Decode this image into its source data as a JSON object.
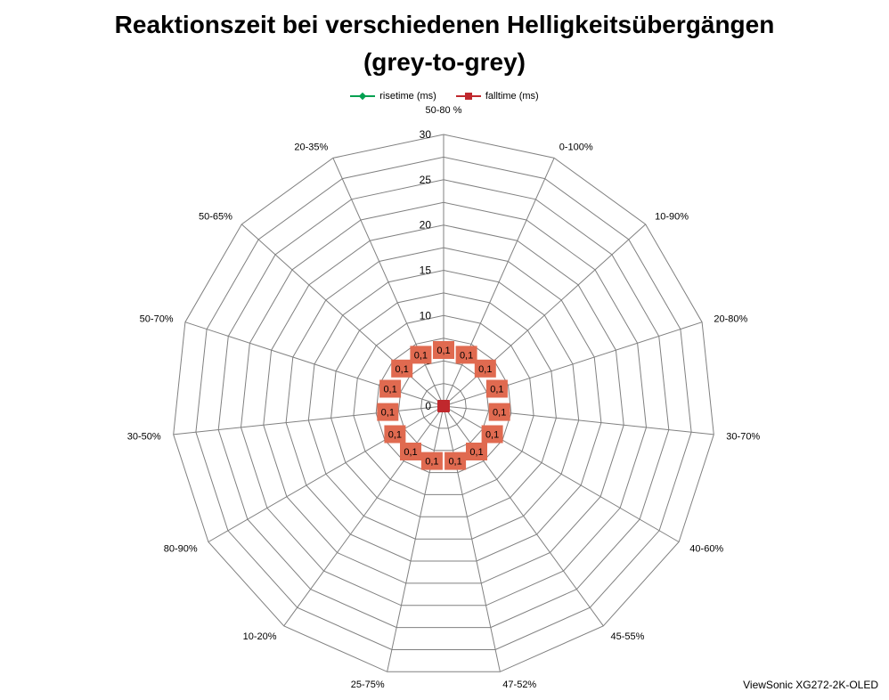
{
  "title_line1": "Reaktionszeit bei verschiedenen Helligkeitsübergängen",
  "title_line2": "(grey-to-grey)",
  "watermark": "ViewSonic XG272-2K-OLED",
  "colors": {
    "rise": "#00a050",
    "fall": "#c0282d",
    "label_fill": "#e06a50",
    "grid": "#808080"
  },
  "chart_data": {
    "type": "radar",
    "categories": [
      "50-80 %",
      "0-100%",
      "10-90%",
      "20-80%",
      "30-70%",
      "40-60%",
      "45-55%",
      "47-52%",
      "25-75%",
      "10-20%",
      "80-90%",
      "30-50%",
      "50-70%",
      "50-65%",
      "20-35%"
    ],
    "rlim": [
      0,
      30
    ],
    "ticks": [
      0,
      5,
      10,
      15,
      20,
      25,
      30
    ],
    "legend_position": "top",
    "series": [
      {
        "name": "risetime (ms)",
        "marker": "diamond",
        "values": [
          0.1,
          0.1,
          0.1,
          0.1,
          0.1,
          0.1,
          0.1,
          0.1,
          0.1,
          0.1,
          0.1,
          0.1,
          0.1,
          0.1,
          0.1
        ]
      },
      {
        "name": "falltime (ms)",
        "marker": "square",
        "values": [
          0.1,
          0.1,
          0.1,
          0.1,
          0.1,
          0.1,
          0.1,
          0.1,
          0.1,
          0.1,
          0.1,
          0.1,
          0.1,
          0.1,
          0.1
        ]
      }
    ],
    "data_labels": [
      "0,1",
      "0,1",
      "0,1",
      "0,1",
      "0,1",
      "0,1",
      "0,1",
      "0,1",
      "0,1",
      "0,1",
      "0,1",
      "0,1",
      "0,1",
      "0,1",
      "0,1"
    ]
  }
}
